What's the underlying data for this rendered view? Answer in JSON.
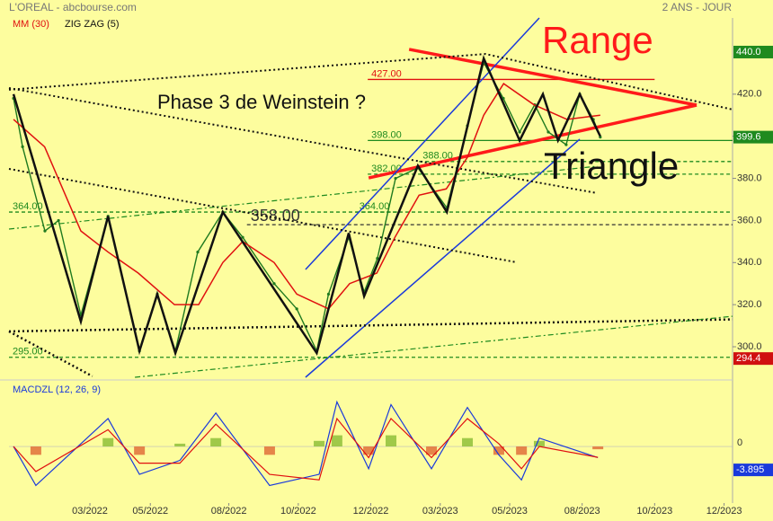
{
  "chart_data": {
    "type": "line",
    "title": "L'OREAL - abcbourse.com",
    "period": "2 ANS - JOUR",
    "xlim": [
      -0.68,
      23.28
    ],
    "xticks": [
      {
        "value": 2,
        "label": "03/2022"
      },
      {
        "value": 4,
        "label": "05/2022"
      },
      {
        "value": 6.6,
        "label": "08/2022"
      },
      {
        "value": 8.9,
        "label": "10/2022"
      },
      {
        "value": 11.3,
        "label": "12/2022"
      },
      {
        "value": 13.6,
        "label": "03/2023"
      },
      {
        "value": 15.9,
        "label": "05/2023"
      },
      {
        "value": 18.3,
        "label": "08/2023"
      },
      {
        "value": 20.7,
        "label": "10/2023"
      },
      {
        "value": 23,
        "label": "12/2023"
      }
    ],
    "ylim": [
      285.5,
      456.2
    ],
    "yticks": [
      {
        "value": 300,
        "label": "300.0"
      },
      {
        "value": 320,
        "label": "320.0"
      },
      {
        "value": 340,
        "label": "340.0"
      },
      {
        "value": 360,
        "label": "360.0"
      },
      {
        "value": 380,
        "label": "380.0"
      },
      {
        "value": 400,
        "label": "400.0"
      },
      {
        "value": 420,
        "label": "420.0"
      }
    ],
    "price": {
      "color": "#1f7a1f",
      "x": [
        -0.53,
        -0.23,
        0.51,
        0.96,
        1.7,
        2.6,
        3.64,
        4.23,
        4.83,
        5.57,
        6.4,
        7.06,
        8.1,
        8.85,
        9.51,
        9.9,
        10.57,
        11.08,
        11.52,
        12.12,
        12.86,
        13.82,
        14.5,
        15.04,
        15.69,
        16.23,
        16.73,
        17.18,
        17.77,
        18.22,
        18.67,
        18.9
      ],
      "values": [
        418,
        395,
        355,
        360,
        315,
        362,
        298,
        325,
        298,
        345,
        364,
        352,
        330,
        318,
        298,
        325,
        352,
        326,
        342,
        380,
        385,
        366,
        405,
        435,
        418,
        402,
        415,
        402,
        396,
        420,
        408,
        399.6
      ]
    },
    "series": [
      {
        "name": "MM (30)",
        "color": "#e01010",
        "x": [
          -0.53,
          0.5,
          1.7,
          2.6,
          3.6,
          4.8,
          5.6,
          6.4,
          7.06,
          8.1,
          8.85,
          9.9,
          10.6,
          11.5,
          12.1,
          12.9,
          13.8,
          14.5,
          15.04,
          15.7,
          16.7,
          17.8,
          18.9
        ],
        "values": [
          408,
          395,
          355,
          345,
          335,
          320,
          320,
          340,
          350,
          340,
          325,
          318,
          330,
          335,
          352,
          372,
          375,
          390,
          410,
          425,
          415,
          408,
          410
        ]
      },
      {
        "name": "ZIG ZAG (5)",
        "color": "#111111",
        "x": [
          -0.53,
          1.7,
          2.6,
          3.64,
          4.23,
          4.83,
          6.4,
          9.51,
          10.57,
          11.08,
          12.86,
          13.82,
          15.04,
          16.23,
          17.0,
          17.5,
          18.22,
          18.9
        ],
        "values": [
          420,
          312,
          362,
          298,
          325,
          297,
          364,
          297,
          354,
          324,
          386,
          364,
          437,
          398,
          420,
          398,
          420,
          400
        ]
      }
    ],
    "levels": [
      {
        "value": 427,
        "label": "427.00",
        "x": [
          11.2,
          20.7
        ],
        "color": "#e01010",
        "dash": "none"
      },
      {
        "value": 398,
        "label": "398.00",
        "x": [
          11.2,
          23.28
        ],
        "color": "#1f8a1f",
        "dash": "none"
      },
      {
        "value": 388,
        "label": "388.00",
        "x": [
          12.9,
          23.28
        ],
        "color": "#1f8a1f",
        "dash": "4 3"
      },
      {
        "value": 382,
        "label": "382.00",
        "x": [
          11.2,
          23.28
        ],
        "color": "#1f8a1f",
        "dash": "4 3"
      },
      {
        "value": 364,
        "label": "364.00",
        "x": [
          -0.68,
          23.28
        ],
        "color": "#1f8a1f",
        "dash": "4 3"
      },
      {
        "value": 364,
        "label": "364.00",
        "x": [
          10.8,
          12.2
        ],
        "color": "#1f8a1f",
        "dash": "4 3"
      },
      {
        "value": 358,
        "label": "358.00",
        "x": [
          7.2,
          23.28
        ],
        "color": "#333333",
        "dash": "4 3"
      },
      {
        "value": 295,
        "label": "295.00",
        "x": [
          -0.68,
          23.28
        ],
        "color": "#1f8a1f",
        "dash": "4 3"
      }
    ],
    "trendlines": [
      {
        "x": [
          12.57,
          22.09
        ],
        "y": [
          441.3,
          414.8
        ],
        "color": "#ff1a1a",
        "width": 3.5,
        "dash": "none"
      },
      {
        "x": [
          11.23,
          22.09
        ],
        "y": [
          380.2,
          414.8
        ],
        "color": "#ff1a1a",
        "width": 3.5,
        "dash": "none"
      },
      {
        "x": [
          9.14,
          18.22
        ],
        "y": [
          285.5,
          398.6
        ],
        "color": "#1a3adb",
        "width": 1.5,
        "dash": "none"
      },
      {
        "x": [
          9.14,
          16.88
        ],
        "y": [
          336.7,
          456.2
        ],
        "color": "#1a3adb",
        "width": 1.5,
        "dash": "none"
      },
      {
        "x": [
          -0.68,
          15.1,
          23.28
        ],
        "y": [
          422.1,
          439.1,
          412.7
        ],
        "color": "#111111",
        "width": 2,
        "dash": "2 3"
      },
      {
        "x": [
          -0.68,
          18.8
        ],
        "y": [
          422.9,
          373
        ],
        "color": "#111111",
        "width": 2,
        "dash": "2 3"
      },
      {
        "x": [
          -0.68,
          16.14
        ],
        "y": [
          384.5,
          340.1
        ],
        "color": "#111111",
        "width": 2,
        "dash": "2 3"
      },
      {
        "x": [
          -0.68,
          23.28
        ],
        "y": [
          307.3,
          313
        ],
        "color": "#111111",
        "width": 2.5,
        "dash": "2 3"
      },
      {
        "x": [
          -0.68,
          2.08
        ],
        "y": [
          307.3,
          286
        ],
        "color": "#111111",
        "width": 2.5,
        "dash": "2 3"
      },
      {
        "x": [
          -0.68,
          18.8
        ],
        "y": [
          355.9,
          385.8
        ],
        "color": "#1f8a1f",
        "width": 1.2,
        "dash": "6 3 2 3"
      },
      {
        "x": [
          3.49,
          23.28
        ],
        "y": [
          285.5,
          314.5
        ],
        "color": "#1f8a1f",
        "width": 1.2,
        "dash": "6 3 2 3"
      }
    ],
    "annotations": [
      "Range",
      "Triangle",
      "Phase 3 de Weinstein ?"
    ],
    "badges": [
      {
        "value": {
          "value": 440,
          "label": "440.0"
        },
        "color": "#1f8a1f"
      },
      {
        "value": 399.6,
        "color": "#1f8a1f"
      },
      {
        "value": 294.4,
        "color": "#d01010"
      }
    ],
    "macd": {
      "title": "MACDZL (12, 26, 9)",
      "ylim": [
        -20.3,
        21.6
      ],
      "yticks": [
        0
      ],
      "x": [
        -0.53,
        0.21,
        2.6,
        3.64,
        4.98,
        6.17,
        7.95,
        9.59,
        10.18,
        11.23,
        11.97,
        13.31,
        14.5,
        15.54,
        16.29,
        16.88,
        18.82
      ],
      "macd": [
        0,
        -14,
        10,
        -10,
        -5,
        12,
        -14,
        -10,
        16,
        -8,
        15,
        -8,
        14,
        -3,
        -12,
        3,
        -4
      ],
      "signal": [
        0,
        -9,
        6,
        -6,
        -6,
        8,
        -10,
        -12,
        10,
        -4,
        10,
        -4,
        10,
        1,
        -8,
        0,
        -3.9
      ],
      "histogram": [
        0,
        -3,
        3,
        -3,
        1,
        3,
        -3,
        2,
        4,
        -3,
        4,
        -3,
        3,
        -3,
        -3,
        2,
        -1
      ],
      "badge": -3.895
    }
  }
}
